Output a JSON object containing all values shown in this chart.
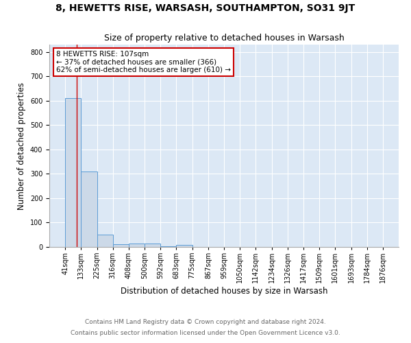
{
  "title": "8, HEWETTS RISE, WARSASH, SOUTHAMPTON, SO31 9JT",
  "subtitle": "Size of property relative to detached houses in Warsash",
  "xlabel": "Distribution of detached houses by size in Warsash",
  "ylabel": "Number of detached properties",
  "bin_edges": [
    41,
    133,
    225,
    316,
    408,
    500,
    592,
    683,
    775,
    867,
    959,
    1050,
    1142,
    1234,
    1326,
    1417,
    1509,
    1601,
    1693,
    1784,
    1876
  ],
  "bar_heights": [
    610,
    310,
    50,
    10,
    13,
    13,
    2,
    8,
    0,
    0,
    0,
    0,
    0,
    0,
    0,
    0,
    0,
    0,
    0,
    0
  ],
  "bar_color": "#ccd9e8",
  "bar_edge_color": "#5b9bd5",
  "property_line_x": 107,
  "property_line_color": "#cc0000",
  "annotation_line1": "8 HEWETTS RISE: 107sqm",
  "annotation_line2": "← 37% of detached houses are smaller (366)",
  "annotation_line3": "62% of semi-detached houses are larger (610) →",
  "annotation_box_color": "#ffffff",
  "annotation_box_edge": "#cc0000",
  "ylim": [
    0,
    830
  ],
  "yticks": [
    0,
    100,
    200,
    300,
    400,
    500,
    600,
    700,
    800
  ],
  "footnote1": "Contains HM Land Registry data © Crown copyright and database right 2024.",
  "footnote2": "Contains public sector information licensed under the Open Government Licence v3.0.",
  "bg_color": "#dce8f5",
  "fig_bg": "#ffffff",
  "title_fontsize": 10,
  "subtitle_fontsize": 9,
  "axis_label_fontsize": 8.5,
  "tick_fontsize": 7,
  "annotation_fontsize": 7.5,
  "footnote_fontsize": 6.5
}
